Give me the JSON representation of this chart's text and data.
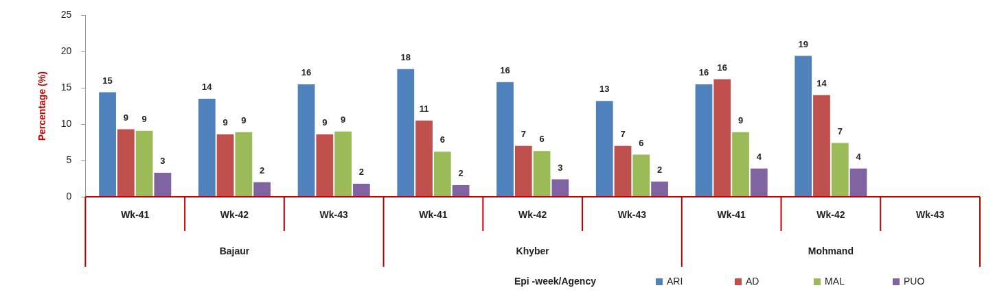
{
  "chart_data": {
    "type": "bar",
    "categories": [
      "Wk-41",
      "Wk-42",
      "Wk-43",
      "Wk-41",
      "Wk-42",
      "Wk-43",
      "Wk-41",
      "Wk-42",
      "Wk-43"
    ],
    "ylabel": "Percentage (%)",
    "annotations": [
      "Bajaur",
      "Khyber",
      "Mohmand",
      "Epi -week/Agency"
    ],
    "series": [
      {
        "name": "ARI",
        "color": "#4f81bd",
        "values": [
          14.5,
          13.6,
          15.6,
          17.7,
          15.9,
          13.3,
          15.6,
          19.5,
          null
        ],
        "value_labels": [
          "15",
          "14",
          "16",
          "18",
          "16",
          "13",
          "16",
          "19",
          null
        ]
      },
      {
        "name": "AD",
        "color": "#c0504d",
        "values": [
          9.4,
          8.7,
          8.7,
          10.6,
          7.1,
          7.1,
          16.3,
          14.1,
          null
        ],
        "value_labels": [
          "9",
          "9",
          "9",
          "11",
          "7",
          "7",
          "16",
          "14",
          null
        ]
      },
      {
        "name": "MAL",
        "color": "#9bbb59",
        "values": [
          9.2,
          9.0,
          9.1,
          6.3,
          6.4,
          5.9,
          9.0,
          7.5,
          null
        ],
        "value_labels": [
          "9",
          "9",
          "9",
          "6",
          "6",
          "6",
          "9",
          "7",
          null
        ]
      },
      {
        "name": "PUO",
        "color": "#8064a2",
        "values": [
          3.4,
          2.1,
          1.9,
          1.7,
          2.5,
          2.2,
          4.0,
          4.0,
          null
        ],
        "value_labels": [
          "3",
          "2",
          "2",
          "2",
          "3",
          "2",
          "4",
          "4",
          null
        ]
      }
    ],
    "ylim": [
      0,
      25
    ],
    "yticks": [
      0,
      5,
      10,
      15,
      20,
      25
    ],
    "grid": false,
    "legend": "bottom right"
  }
}
